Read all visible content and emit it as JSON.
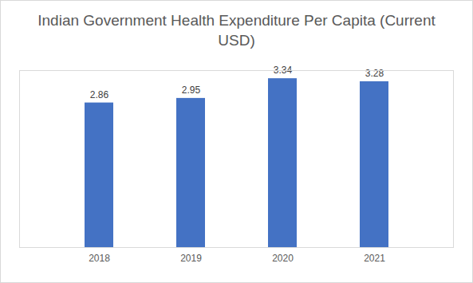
{
  "chart_data": {
    "type": "bar",
    "title": "Indian Government Health Expenditure Per Capita (Current USD)",
    "categories": [
      "2018",
      "2019",
      "2020",
      "2021"
    ],
    "values": [
      2.86,
      2.95,
      3.34,
      3.28
    ],
    "color": "#4472c4",
    "ylim": [
      0,
      3.5
    ],
    "grid": false,
    "data_labels": true,
    "tick_labels": "x"
  }
}
